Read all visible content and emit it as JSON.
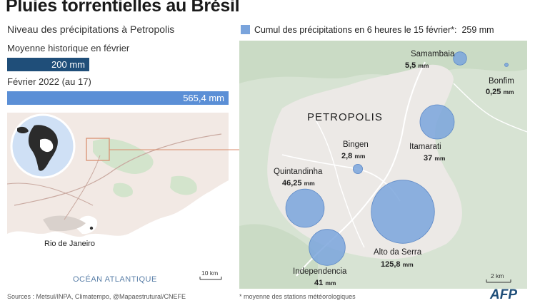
{
  "title": "Pluies torrentielles au Brésil",
  "subtitle": "Niveau des précipitations à Petropolis",
  "historical": {
    "label": "Moyenne historique en février",
    "value_text": "200 mm",
    "value": 200
  },
  "current": {
    "label": "Février 2022 (au 17)",
    "value_text": "565,4 mm",
    "value": 565.4
  },
  "legend": {
    "text": "Cumul des précipitations en 6 heures le 15 février*:",
    "value": "259 mm"
  },
  "left_map": {
    "city": "Rio de Janeiro",
    "ocean": "OCÉAN ATLANTIQUE",
    "scale": "10 km"
  },
  "right_map": {
    "city": "PETROPOLIS",
    "scale": "2 km",
    "stations": [
      {
        "name": "Samambaia",
        "value": "5,5",
        "unit": "mm",
        "mm": 5.5
      },
      {
        "name": "Bonfim",
        "value": "0,25",
        "unit": "mm",
        "mm": 0.25
      },
      {
        "name": "Itamarati",
        "value": "37",
        "unit": "mm",
        "mm": 37
      },
      {
        "name": "Bingen",
        "value": "2,8",
        "unit": "mm",
        "mm": 2.8
      },
      {
        "name": "Quintandinha",
        "value": "46,25",
        "unit": "mm",
        "mm": 46.25
      },
      {
        "name": "Alto da Serra",
        "value": "125,8",
        "unit": "mm",
        "mm": 125.8
      },
      {
        "name": "Independencia",
        "value": "41",
        "unit": "mm",
        "mm": 41
      }
    ]
  },
  "footer": {
    "sources": "Sources : Metsul/INPA, Climatempo, @Mapaestrutural/CNEFE",
    "note": "* moyenne des stations météorologiques",
    "logo": "AFP"
  },
  "colors": {
    "dark_bar": "#1f4e79",
    "light_bar": "#5b8fd6",
    "bubble": "#7aa4dc"
  }
}
